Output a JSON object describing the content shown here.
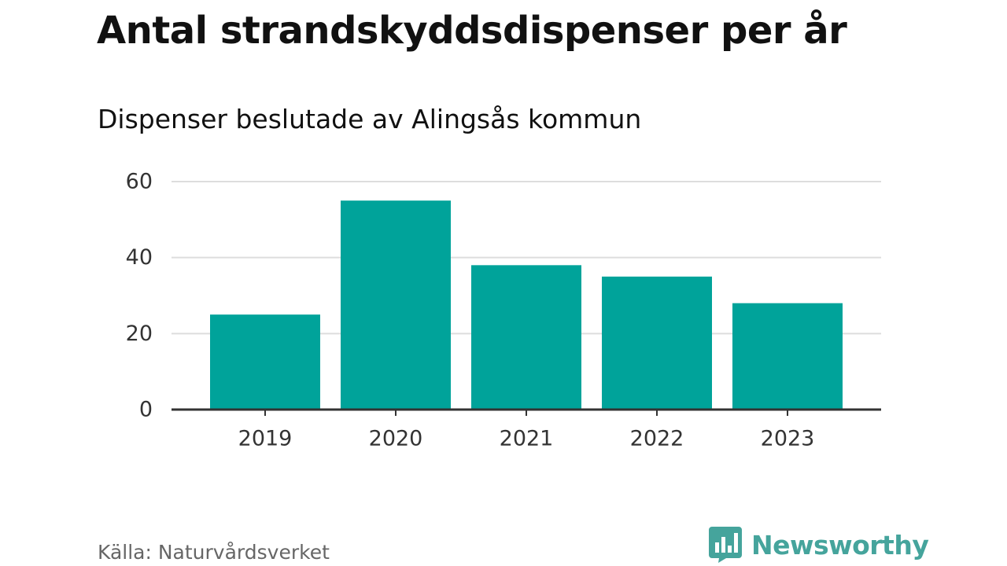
{
  "header": {
    "title": "Antal strandskyddsdispenser per år",
    "subtitle": "Dispenser beslutade av Alingsås kommun"
  },
  "footer": {
    "source": "Källa: Naturvårdsverket",
    "logo_text": "Newsworthy",
    "logo_icon": "bar-chart-bubble-icon"
  },
  "colors": {
    "bar": "#00a39a",
    "grid": "#dddddd",
    "axis": "#333333",
    "logo": "#45a49c"
  },
  "chart_data": {
    "type": "bar",
    "title": "Antal strandskyddsdispenser per år",
    "subtitle": "Dispenser beslutade av Alingsås kommun",
    "xlabel": "",
    "ylabel": "",
    "categories": [
      "2019",
      "2020",
      "2021",
      "2022",
      "2023"
    ],
    "values": [
      25,
      55,
      38,
      35,
      28
    ],
    "ylim": [
      0,
      60
    ],
    "yticks": [
      0,
      20,
      40,
      60
    ],
    "grid": true,
    "legend": "none"
  }
}
